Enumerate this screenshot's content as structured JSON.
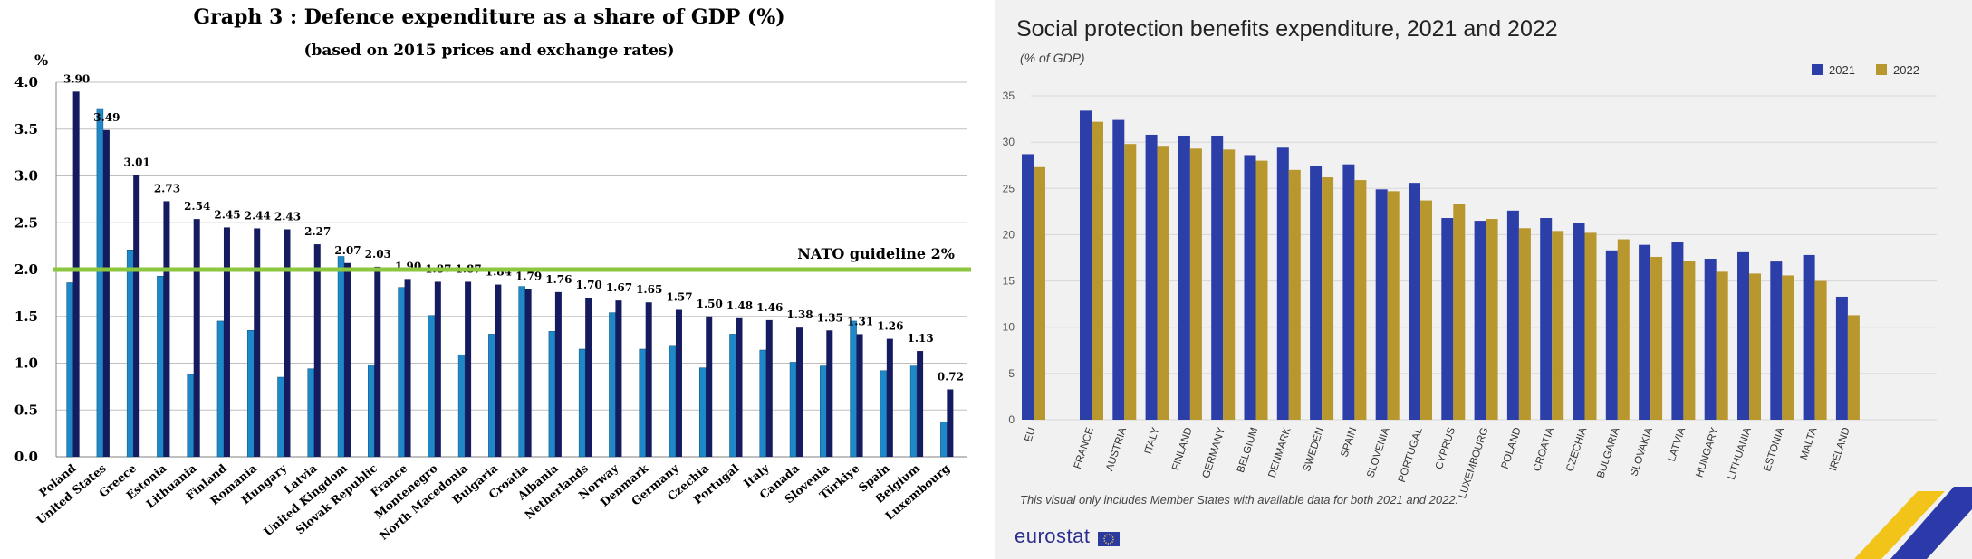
{
  "left": {
    "title": "Graph 3 : Defence expenditure as a share of GDP (%)",
    "subtitle": "(based on 2015 prices and exchange rates)",
    "guideline_label": "NATO guideline 2%",
    "colors": {
      "series_a": "#1f88c8",
      "series_b": "#141b5e",
      "guideline": "#8dc63f",
      "grid": "#bfbfbf"
    }
  },
  "right": {
    "title": "Social protection benefits expenditure, 2021 and 2022",
    "subtitle": "(% of GDP)",
    "note": "This visual only includes Member States with available data for both 2021 and 2022.",
    "logo_text": "eurostat",
    "colors": {
      "2021": "#2c3ea8",
      "2022": "#b8972e",
      "grid": "#d7d7d7"
    }
  },
  "chart_data": [
    {
      "type": "bar",
      "title": "Graph 3 : Defence expenditure as a share of GDP (%)",
      "subtitle": "(based on 2015 prices and exchange rates)",
      "ylabel": "%",
      "ylim": [
        0,
        4.0
      ],
      "yticks": [
        "0.0",
        "0.5",
        "1.0",
        "1.5",
        "2.0",
        "2.5",
        "3.0",
        "3.5",
        "4.0"
      ],
      "grid": true,
      "legend": "none",
      "categories": [
        "Poland",
        "United States",
        "Greece",
        "Estonia",
        "Lithuania",
        "Finland",
        "Romania",
        "Hungary",
        "Latvia",
        "United Kingdom",
        "Slovak Republic",
        "France",
        "Montenegro",
        "North Macedonia",
        "Bulgaria",
        "Croatia",
        "Albania",
        "Netherlands",
        "Norway",
        "Denmark",
        "Germany",
        "Czechia",
        "Portugal",
        "Italy",
        "Canada",
        "Slovenia",
        "Türkiye",
        "Spain",
        "Belgium",
        "Luxembourg"
      ],
      "series": [
        {
          "values": [
            1.86,
            3.72,
            2.21,
            1.93,
            0.88,
            1.45,
            1.35,
            0.85,
            0.94,
            2.14,
            0.98,
            1.81,
            1.51,
            1.09,
            1.31,
            1.82,
            1.34,
            1.15,
            1.54,
            1.15,
            1.19,
            0.95,
            1.31,
            1.14,
            1.01,
            0.97,
            1.45,
            0.92,
            0.97,
            0.37
          ]
        },
        {
          "values": [
            3.9,
            3.49,
            3.01,
            2.73,
            2.54,
            2.45,
            2.44,
            2.43,
            2.27,
            2.07,
            2.03,
            1.9,
            1.87,
            1.87,
            1.84,
            1.79,
            1.76,
            1.7,
            1.67,
            1.65,
            1.57,
            1.5,
            1.48,
            1.46,
            1.38,
            1.35,
            1.31,
            1.26,
            1.13,
            0.72
          ],
          "labels": [
            "3.90",
            "3.49",
            "3.01",
            "2.73",
            "2.54",
            "2.45",
            "2.44",
            "2.43",
            "2.27",
            "2.07",
            "2.03",
            "1.90",
            "1.87",
            "1.87",
            "1.84",
            "1.79",
            "1.76",
            "1.70",
            "1.67",
            "1.65",
            "1.57",
            "1.50",
            "1.48",
            "1.46",
            "1.38",
            "1.35",
            "1.31",
            "1.26",
            "1.13",
            "0.72"
          ]
        }
      ],
      "reference_line": {
        "value": 2.0,
        "label": "NATO guideline 2%"
      }
    },
    {
      "type": "bar",
      "title": "Social protection benefits expenditure, 2021 and 2022",
      "subtitle": "(% of GDP)",
      "ylim": [
        0,
        35
      ],
      "yticks": [
        "0",
        "5",
        "10",
        "15",
        "20",
        "25",
        "30",
        "35"
      ],
      "grid": true,
      "legend": "top-right",
      "categories": [
        "EU",
        "FRANCE",
        "AUSTRIA",
        "ITALY",
        "FINLAND",
        "GERMANY",
        "BELGIUM",
        "DENMARK",
        "SWEDEN",
        "SPAIN",
        "SLOVENIA",
        "PORTUGAL",
        "CYPRUS",
        "LUXEMBOURG",
        "POLAND",
        "CROATIA",
        "CZECHIA",
        "BULGARIA",
        "SLOVAKIA",
        "LATVIA",
        "HUNGARY",
        "LITHUANIA",
        "ESTONIA",
        "MALTA",
        "IRELAND"
      ],
      "series": [
        {
          "name": "2021",
          "values": [
            28.7,
            33.4,
            32.4,
            30.8,
            30.7,
            30.7,
            28.6,
            29.4,
            27.4,
            27.6,
            24.9,
            25.6,
            21.8,
            21.5,
            22.6,
            21.8,
            21.3,
            18.3,
            18.9,
            19.2,
            17.4,
            18.1,
            17.1,
            17.8,
            13.3
          ]
        },
        {
          "name": "2022",
          "values": [
            27.3,
            32.2,
            29.8,
            29.6,
            29.3,
            29.2,
            28.0,
            27.0,
            26.2,
            25.9,
            24.7,
            23.7,
            23.3,
            21.7,
            20.7,
            20.4,
            20.2,
            19.5,
            17.6,
            17.2,
            16.0,
            15.8,
            15.6,
            15.0,
            11.3
          ]
        }
      ]
    }
  ]
}
